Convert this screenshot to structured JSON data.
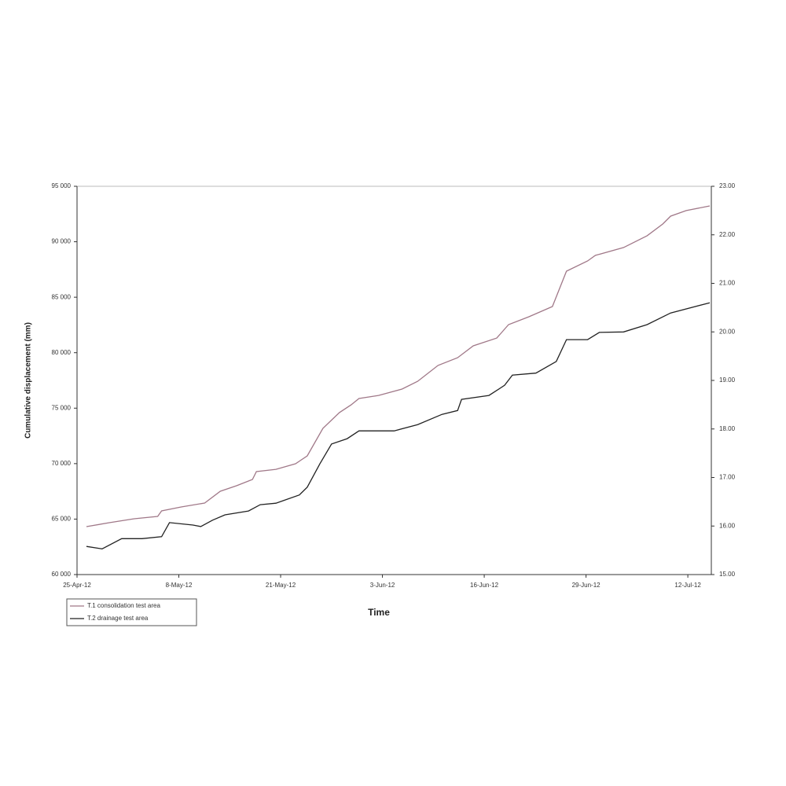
{
  "chart_data": {
    "type": "line",
    "x_label": "Time",
    "y_label": "Cumulative displacement (mm)",
    "xlim": [
      0,
      81
    ],
    "xticks": [
      {
        "value": 0,
        "label": "25-Apr-12"
      },
      {
        "value": 13,
        "label": "8-May-12"
      },
      {
        "value": 26,
        "label": "21-May-12"
      },
      {
        "value": 39,
        "label": "3-Jun-12"
      },
      {
        "value": 52,
        "label": "16-Jun-12"
      },
      {
        "value": 65,
        "label": "29-Jun-12"
      },
      {
        "value": 78,
        "label": "12-Jul-12"
      }
    ],
    "ylim": [
      60000,
      95000
    ],
    "yticks": [
      {
        "value": 60000,
        "label": "60 000"
      },
      {
        "value": 65000,
        "label": "65 000"
      },
      {
        "value": 70000,
        "label": "70 000"
      },
      {
        "value": 75000,
        "label": "75 000"
      },
      {
        "value": 80000,
        "label": "80 000"
      },
      {
        "value": 85000,
        "label": "85 000"
      },
      {
        "value": 90000,
        "label": "90 000"
      },
      {
        "value": 95000,
        "label": "95 000"
      }
    ],
    "y2lim": [
      15,
      23
    ],
    "y2ticks": [
      {
        "value": 15,
        "label": "15.00"
      },
      {
        "value": 16,
        "label": "16.00"
      },
      {
        "value": 17,
        "label": "17.00"
      },
      {
        "value": 18,
        "label": "18.00"
      },
      {
        "value": 19,
        "label": "19.00"
      },
      {
        "value": 20,
        "label": "20.00"
      },
      {
        "value": 21,
        "label": "21.00"
      },
      {
        "value": 22,
        "label": "22.00"
      },
      {
        "value": 23,
        "label": "23.00"
      }
    ],
    "legend": "bottom-left",
    "series": [
      {
        "name": "T.1 consolidation test area",
        "color": "#a07888",
        "x": [
          1.2,
          4.2,
          7.3,
          10.3,
          10.8,
          13.3,
          16.3,
          18.3,
          20.4,
          22.4,
          22.9,
          25.4,
          27.9,
          29.4,
          31.4,
          33.5,
          35.0,
          36.0,
          38.5,
          41.5,
          43.5,
          46.1,
          48.6,
          50.6,
          53.6,
          55.1,
          57.7,
          60.7,
          62.5,
          65.2,
          66.2,
          69.8,
          72.8,
          74.8,
          75.8,
          77.8,
          80.8
        ],
        "values": [
          64320,
          64680,
          65030,
          65240,
          65740,
          66090,
          66450,
          67510,
          68010,
          68570,
          69280,
          69490,
          69990,
          70700,
          73180,
          74600,
          75300,
          75870,
          76150,
          76720,
          77420,
          78850,
          79550,
          80620,
          81320,
          82530,
          83240,
          84160,
          87350,
          88270,
          88770,
          89480,
          90540,
          91600,
          92310,
          92810,
          93230
        ]
      },
      {
        "name": "T.2 drainage test area",
        "color": "#222222",
        "axis": "y2",
        "x": [
          1.2,
          3.2,
          5.7,
          8.3,
          10.8,
          11.8,
          14.8,
          15.8,
          17.3,
          18.9,
          21.9,
          23.4,
          25.4,
          28.4,
          29.4,
          31.0,
          32.5,
          34.5,
          36.0,
          40.5,
          43.5,
          46.6,
          48.6,
          49.1,
          52.6,
          54.6,
          55.6,
          58.6,
          61.2,
          62.5,
          65.2,
          66.7,
          69.8,
          72.8,
          75.8,
          80.8
        ],
        "values": [
          15.58,
          15.53,
          15.74,
          15.74,
          15.78,
          16.07,
          16.02,
          15.99,
          16.12,
          16.23,
          16.31,
          16.44,
          16.47,
          16.64,
          16.8,
          17.28,
          17.69,
          17.8,
          17.96,
          17.96,
          18.09,
          18.3,
          18.38,
          18.61,
          18.69,
          18.9,
          19.11,
          19.15,
          19.39,
          19.84,
          19.84,
          19.99,
          20.0,
          20.15,
          20.39,
          20.6
        ]
      }
    ]
  }
}
